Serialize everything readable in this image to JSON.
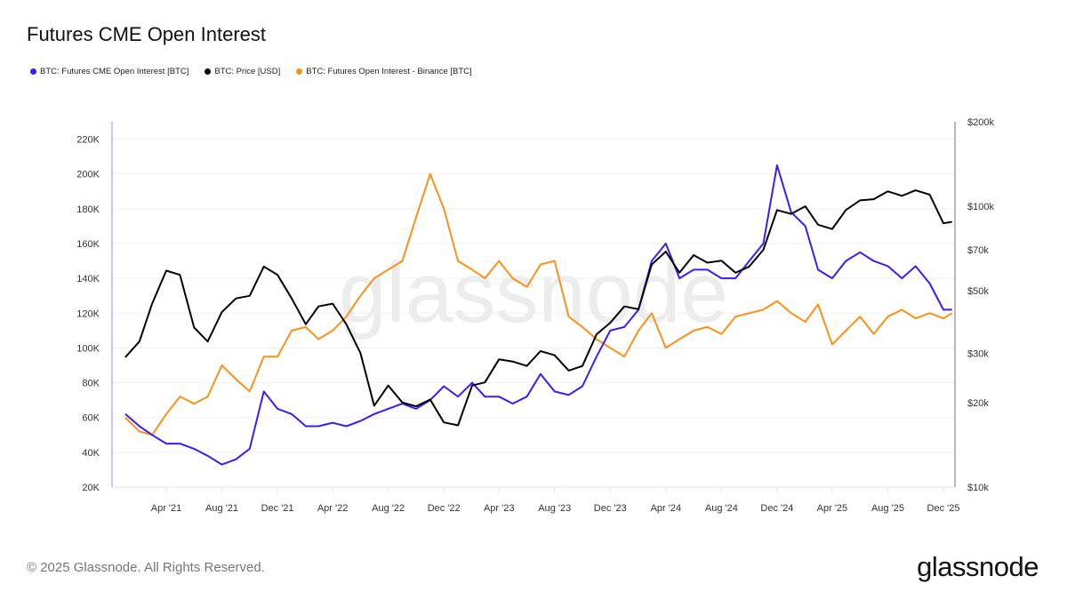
{
  "title": "Futures CME Open Interest",
  "footer": "© 2025 Glassnode. All Rights Reserved.",
  "logo_text": "glassnode",
  "watermark": "glassnode",
  "chart_data": {
    "type": "line",
    "title": "Futures CME Open Interest",
    "legend_position": "top-left",
    "grid": true,
    "x_ticks": [
      "Apr '21",
      "Aug '21",
      "Dec '21",
      "Apr '22",
      "Aug '22",
      "Dec '22",
      "Apr '23",
      "Aug '23",
      "Dec '23",
      "Apr '24",
      "Aug '24",
      "Dec '24",
      "Apr '25",
      "Aug '25",
      "Dec '25"
    ],
    "x_tick_dates": [
      "2021-04-01",
      "2021-08-01",
      "2021-12-01",
      "2022-04-01",
      "2022-08-01",
      "2022-12-01",
      "2023-04-01",
      "2023-08-01",
      "2023-12-01",
      "2024-04-01",
      "2024-08-01",
      "2024-12-01",
      "2025-04-01",
      "2025-08-01",
      "2025-12-01"
    ],
    "y_left": {
      "ticks": [
        "20K",
        "40K",
        "60K",
        "80K",
        "100K",
        "120K",
        "140K",
        "160K",
        "180K",
        "200K",
        "220K"
      ],
      "tick_values": [
        20000,
        40000,
        60000,
        80000,
        100000,
        120000,
        140000,
        160000,
        180000,
        200000,
        220000
      ],
      "ylim": [
        20000,
        230000
      ],
      "scale": "linear"
    },
    "y_right": {
      "ticks": [
        "$10k",
        "$20k",
        "$30k",
        "$50k",
        "$70k",
        "$100k",
        "$200k"
      ],
      "tick_values": [
        10000,
        20000,
        30000,
        50000,
        70000,
        100000,
        200000
      ],
      "ylim": [
        10000,
        200000
      ],
      "scale": "log"
    },
    "x": [
      "2021-01-01",
      "2021-02-01",
      "2021-03-01",
      "2021-04-01",
      "2021-05-01",
      "2021-06-01",
      "2021-07-01",
      "2021-08-01",
      "2021-09-01",
      "2021-10-01",
      "2021-11-01",
      "2021-12-01",
      "2022-01-01",
      "2022-02-01",
      "2022-03-01",
      "2022-04-01",
      "2022-05-01",
      "2022-06-01",
      "2022-07-01",
      "2022-08-01",
      "2022-09-01",
      "2022-10-01",
      "2022-11-01",
      "2022-12-01",
      "2023-01-01",
      "2023-02-01",
      "2023-03-01",
      "2023-04-01",
      "2023-05-01",
      "2023-06-01",
      "2023-07-01",
      "2023-08-01",
      "2023-09-01",
      "2023-10-01",
      "2023-11-01",
      "2023-12-01",
      "2024-01-01",
      "2024-02-01",
      "2024-03-01",
      "2024-04-01",
      "2024-05-01",
      "2024-06-01",
      "2024-07-01",
      "2024-08-01",
      "2024-09-01",
      "2024-10-01",
      "2024-11-01",
      "2024-12-01",
      "2025-01-01",
      "2025-02-01",
      "2025-03-01",
      "2025-04-01",
      "2025-05-01",
      "2025-06-01",
      "2025-07-01",
      "2025-08-01",
      "2025-09-01",
      "2025-10-01",
      "2025-11-01",
      "2025-12-01",
      "2025-12-20"
    ],
    "series": [
      {
        "name": "BTC: Futures CME Open Interest [BTC]",
        "axis": "left",
        "color": "#3d1cf5",
        "values": [
          62000,
          55000,
          50000,
          45000,
          45000,
          42000,
          38000,
          33000,
          36000,
          42000,
          75000,
          65000,
          62000,
          55000,
          55000,
          57000,
          55000,
          58000,
          62000,
          65000,
          68000,
          65000,
          70000,
          78000,
          72000,
          80000,
          72000,
          72000,
          68000,
          72000,
          85000,
          75000,
          73000,
          78000,
          95000,
          110000,
          112000,
          122000,
          150000,
          160000,
          140000,
          145000,
          145000,
          140000,
          140000,
          150000,
          160000,
          205000,
          178000,
          170000,
          145000,
          140000,
          150000,
          155000,
          150000,
          147000,
          140000,
          147000,
          137000,
          122000,
          122000
        ]
      },
      {
        "name": "BTC: Price [USD]",
        "axis": "right",
        "color": "#000000",
        "values": [
          29000,
          33000,
          45000,
          59000,
          57000,
          37000,
          33000,
          42000,
          47000,
          48000,
          61000,
          57000,
          47000,
          38000,
          44000,
          45000,
          38000,
          30000,
          19500,
          23000,
          20000,
          19400,
          20500,
          17000,
          16600,
          23000,
          23600,
          28500,
          28000,
          27000,
          30500,
          29500,
          26000,
          27000,
          35000,
          38500,
          44000,
          43000,
          62000,
          69000,
          58000,
          67000,
          63000,
          64000,
          58000,
          61000,
          70000,
          97000,
          94000,
          100000,
          86000,
          83000,
          97000,
          105000,
          106000,
          113000,
          109000,
          114000,
          110000,
          87000,
          88000
        ]
      },
      {
        "name": "BTC: Futures Open Interest - Binance [BTC]",
        "axis": "left",
        "color": "#f7931a",
        "values": [
          60000,
          52000,
          50000,
          62000,
          72000,
          68000,
          72000,
          90000,
          82000,
          75000,
          95000,
          95000,
          110000,
          112000,
          105000,
          110000,
          118000,
          130000,
          140000,
          145000,
          150000,
          175000,
          200000,
          180000,
          150000,
          145000,
          140000,
          150000,
          140000,
          135000,
          148000,
          150000,
          118000,
          112000,
          105000,
          100000,
          95000,
          110000,
          120000,
          100000,
          105000,
          110000,
          112000,
          108000,
          118000,
          120000,
          122000,
          127000,
          120000,
          115000,
          125000,
          102000,
          110000,
          118000,
          108000,
          118000,
          122000,
          117000,
          120000,
          117000,
          120000
        ]
      }
    ]
  }
}
